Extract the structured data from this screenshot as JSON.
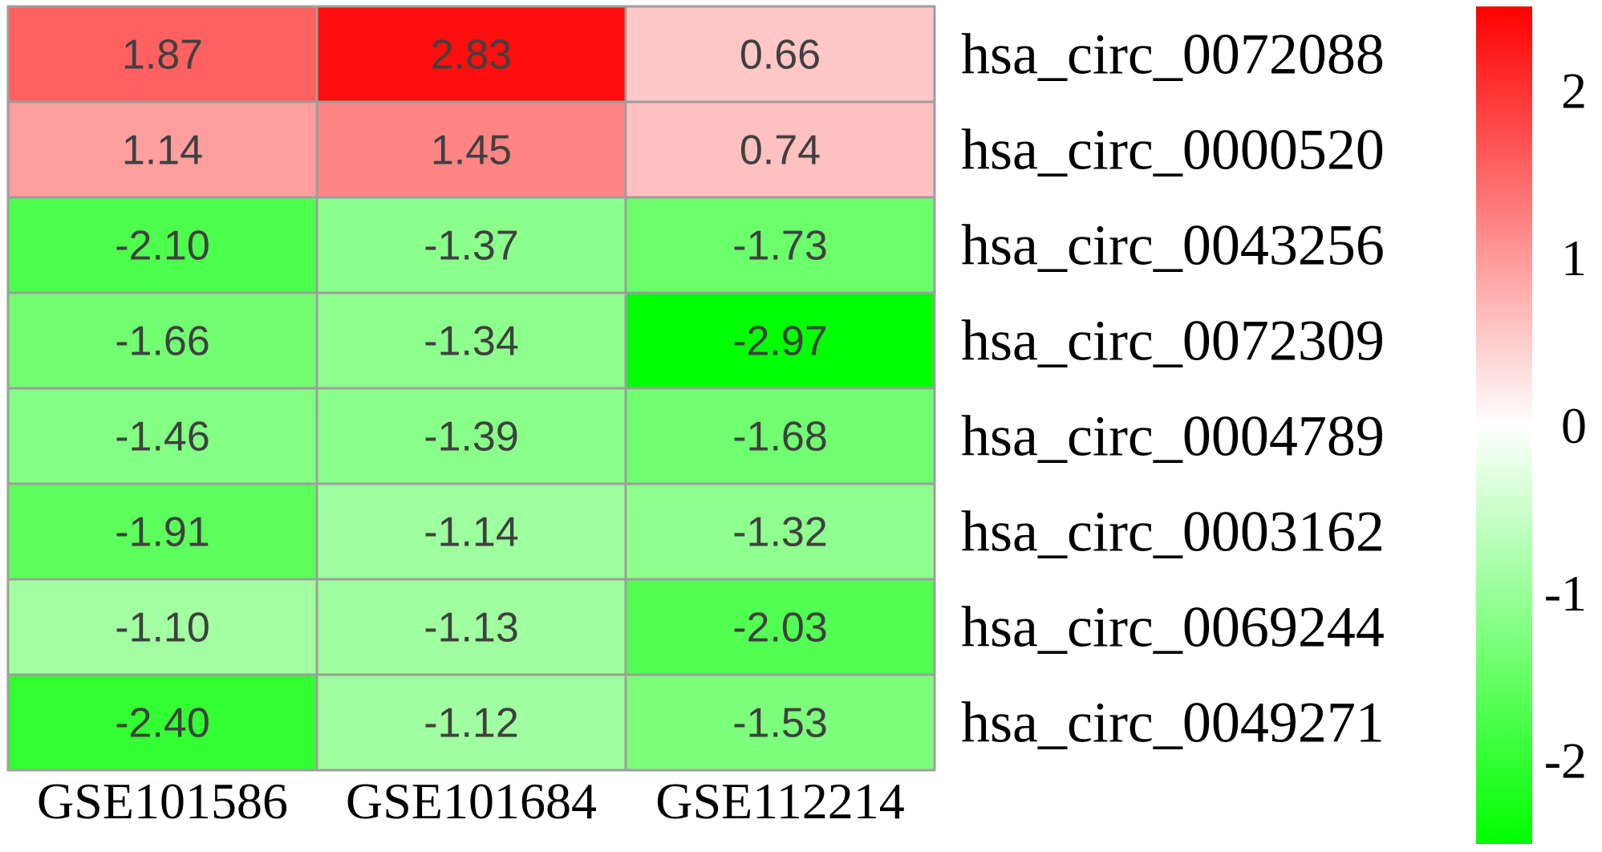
{
  "chart_data": {
    "type": "heatmap",
    "title": "",
    "xlabel": "",
    "ylabel": "",
    "columns": [
      "GSE101586",
      "GSE101684",
      "GSE112214"
    ],
    "rows": [
      "hsa_circ_0072088",
      "hsa_circ_0000520",
      "hsa_circ_0043256",
      "hsa_circ_0072309",
      "hsa_circ_0004789",
      "hsa_circ_0003162",
      "hsa_circ_0069244",
      "hsa_circ_0049271"
    ],
    "values": [
      [
        1.87,
        2.83,
        0.66
      ],
      [
        1.14,
        1.45,
        0.74
      ],
      [
        -2.1,
        -1.37,
        -1.73
      ],
      [
        -1.66,
        -1.34,
        -2.97
      ],
      [
        -1.46,
        -1.39,
        -1.68
      ],
      [
        -1.91,
        -1.14,
        -1.32
      ],
      [
        -1.1,
        -1.13,
        -2.03
      ],
      [
        -2.4,
        -1.12,
        -1.53
      ]
    ],
    "value_labels": [
      [
        "1.87",
        "2.83",
        "0.66"
      ],
      [
        "1.14",
        "1.45",
        "0.74"
      ],
      [
        "-2.10",
        "-1.37",
        "-1.73"
      ],
      [
        "-1.66",
        "-1.34",
        "-2.97"
      ],
      [
        "-1.46",
        "-1.39",
        "-1.68"
      ],
      [
        "-1.91",
        "-1.14",
        "-1.32"
      ],
      [
        "-1.10",
        "-1.13",
        "-2.03"
      ],
      [
        "-2.40",
        "-1.12",
        "-1.53"
      ]
    ],
    "color_scale": {
      "low_color": "#00ff00",
      "mid_color": "#ffffff",
      "high_color": "#ff0000",
      "range": [
        -3,
        3
      ],
      "colorbar_range": [
        -2.5,
        2.5
      ],
      "ticks": [
        2,
        1,
        0,
        -1,
        -2
      ],
      "tick_labels": [
        "2",
        "1",
        "0",
        "-1",
        "-2"
      ]
    },
    "grid_color": "#9e9e9e",
    "legend_position": "right"
  }
}
